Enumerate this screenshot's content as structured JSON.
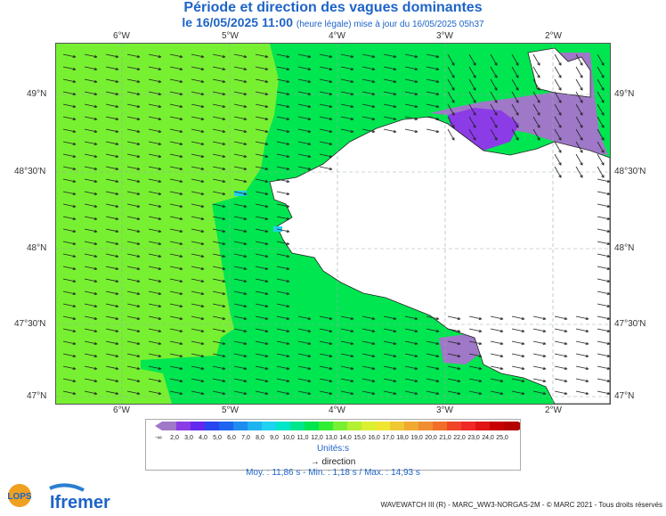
{
  "title": "Période et direction des vagues dominantes",
  "subtitle_date": "le 16/05/2025 11:00",
  "subtitle_note": "(heure légale) mise à jour du 16/05/2025 05h37",
  "axes": {
    "lon_labels": [
      "6°W",
      "5°W",
      "4°W",
      "3°W",
      "2°W"
    ],
    "lat_labels": [
      "49°N",
      "48°30'N",
      "48°N",
      "47°30'N",
      "47°N"
    ]
  },
  "colorbar": {
    "low_label": "-∞",
    "high_label": "∞",
    "ticks": [
      "2,0",
      "3,0",
      "4,0",
      "5,0",
      "6,0",
      "7,0",
      "8,0",
      "9,0",
      "10,0",
      "11,0",
      "12,0",
      "13,0",
      "14,0",
      "15,0",
      "16,0",
      "17,0",
      "18,0",
      "19,0",
      "20,0",
      "21,0",
      "22,0",
      "23,0",
      "24,0",
      "25,0"
    ],
    "colors": [
      "#a078c8",
      "#8c3ce6",
      "#6428f0",
      "#2846f0",
      "#1e64f0",
      "#1e8cf0",
      "#1eb4f0",
      "#1ed2f0",
      "#00e6c8",
      "#00e68c",
      "#00e650",
      "#32ee32",
      "#78f032",
      "#b4f032",
      "#dcf032",
      "#f0e632",
      "#f0c832",
      "#f0aa32",
      "#f08c32",
      "#f06e28",
      "#f04628",
      "#f02828",
      "#e01414",
      "#c80000",
      "#b40000"
    ],
    "units": "Unités:s"
  },
  "direction_legend": "direction",
  "stats": "Moy. : 11,86 s   -   Min. : 1,18 s / Max. : 14,93 s",
  "credits": "WAVEWATCH III (R) - MARC_WW3-NORGAS-2M - © MARC 2021 - Tous droits réservés",
  "logos": {
    "lops": "LOPS",
    "ifremer": "Ifremer"
  },
  "map_colors": {
    "offshore": "#78f032",
    "coastal": "#00e650",
    "bay": "#a078c8",
    "purple_core": "#8c3ce6",
    "land": "#ffffff",
    "cyan": "#1ed2f0"
  }
}
